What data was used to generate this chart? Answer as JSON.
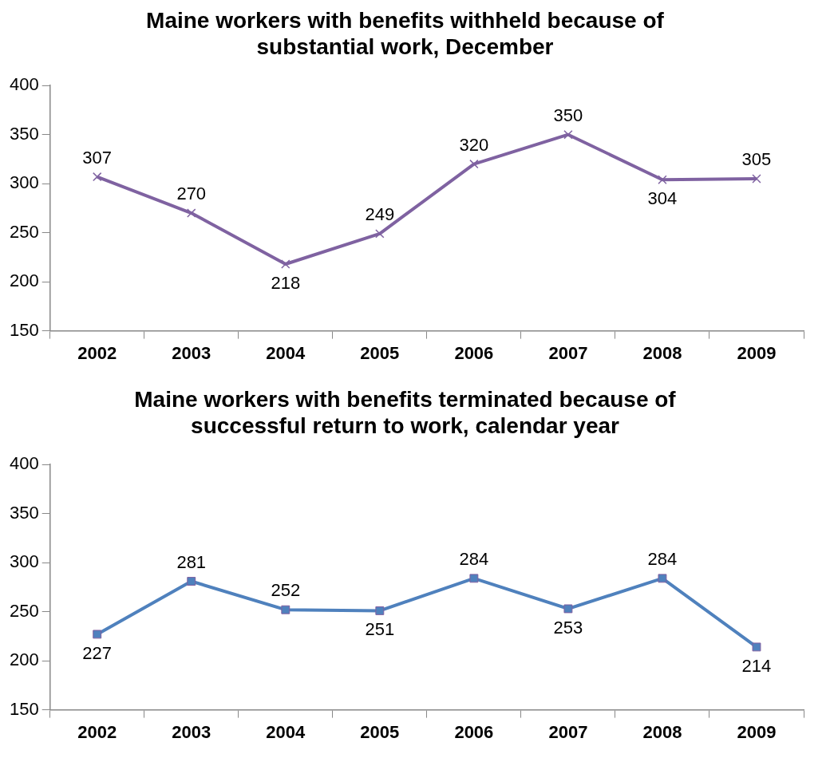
{
  "chart_data": [
    {
      "type": "line",
      "title": "Maine workers with benefits withheld because of substantial work, December",
      "categories": [
        "2002",
        "2003",
        "2004",
        "2005",
        "2006",
        "2007",
        "2008",
        "2009"
      ],
      "series": [
        {
          "color": "#7f62a1",
          "values": [
            307,
            270,
            218,
            249,
            320,
            350,
            304,
            305
          ]
        }
      ],
      "marker": "cross",
      "ylim": [
        150,
        400
      ],
      "yticks": [
        150,
        200,
        250,
        300,
        350,
        400
      ],
      "grid": false,
      "legend": false,
      "data_labels": true
    },
    {
      "type": "line",
      "title": "Maine workers with benefits terminated because of successful return to work, calendar year",
      "categories": [
        "2002",
        "2003",
        "2004",
        "2005",
        "2006",
        "2007",
        "2008",
        "2009"
      ],
      "series": [
        {
          "color": "#4f81bd",
          "values": [
            227,
            281,
            252,
            251,
            284,
            253,
            284,
            214
          ]
        }
      ],
      "marker": "square",
      "ylim": [
        150,
        400
      ],
      "yticks": [
        150,
        200,
        250,
        300,
        350,
        400
      ],
      "grid": false,
      "legend": false,
      "data_labels": true
    }
  ]
}
